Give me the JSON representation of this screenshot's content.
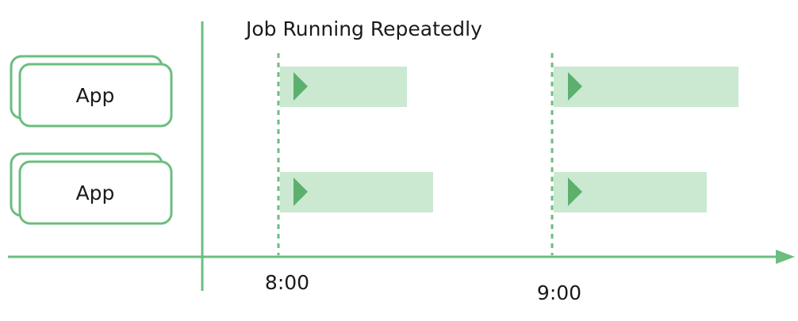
{
  "title": "Job Running Repeatedly",
  "colors": {
    "line": "#6cbd7f",
    "bar_fill": "#cbe8d1",
    "marker": "#5cb06e",
    "text": "#1a1a1a",
    "box_fill": "#ffffff"
  },
  "apps": [
    {
      "label": "App",
      "stacked": true
    },
    {
      "label": "App",
      "stacked": true
    }
  ],
  "time_markers": [
    {
      "label": "8:00"
    },
    {
      "label": "9:00"
    }
  ],
  "runs": [
    {
      "app": 0,
      "marker": 0,
      "icon": "play-triangle-icon"
    },
    {
      "app": 0,
      "marker": 1,
      "icon": "play-triangle-icon"
    },
    {
      "app": 1,
      "marker": 0,
      "icon": "play-triangle-icon"
    },
    {
      "app": 1,
      "marker": 1,
      "icon": "play-triangle-icon"
    }
  ],
  "axis": {
    "arrow": "arrow-right-icon"
  }
}
